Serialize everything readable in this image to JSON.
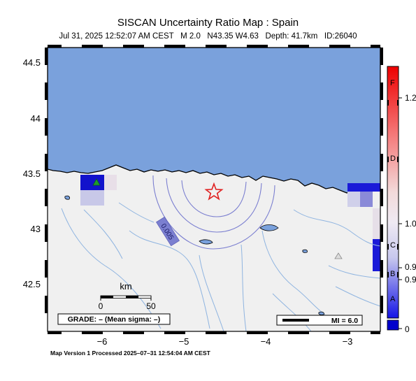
{
  "header": {
    "title": "SISCAN Uncertainty Ratio Map : Spain",
    "subtitle": "Jul 31, 2025 12:52:07 AM CEST   M 2.0   N43.35 W4.63   Depth: 41.7km   ID:26040"
  },
  "map": {
    "lat_ticks": [
      "44.5",
      "44",
      "43.5",
      "43",
      "42.5"
    ],
    "lon_ticks": [
      "−6",
      "−5",
      "−4",
      "−3"
    ],
    "contour_label": "0.005",
    "scale_bar": {
      "unit": "km",
      "labels": [
        "0",
        "50"
      ]
    },
    "grade_box": "GRADE: – (Mean sigma: –)",
    "mi_box": "MI = 6.0",
    "colors": {
      "ocean": "#7aa1dc",
      "land": "#f0f0f0",
      "epicenter": "#e02020",
      "contour": "#7b7fd0",
      "rivers": "#8fb4e0"
    },
    "icons": [
      "epicenter-star-icon",
      "station-triangle-icon"
    ]
  },
  "colorbar": {
    "ticks": [
      "1.2",
      "1.0",
      "0.9",
      "0.9",
      "0"
    ],
    "grades": [
      "F",
      "D",
      "C",
      "B",
      "A"
    ],
    "colors": {
      "top": "#ee0000",
      "middle": "#f2e8f0",
      "bottom": "#1010e0",
      "base": "#0000cc"
    }
  },
  "footer": {
    "text": "Map Version 1 Processed 2025–07–31 12:54:04 AM CEST"
  }
}
